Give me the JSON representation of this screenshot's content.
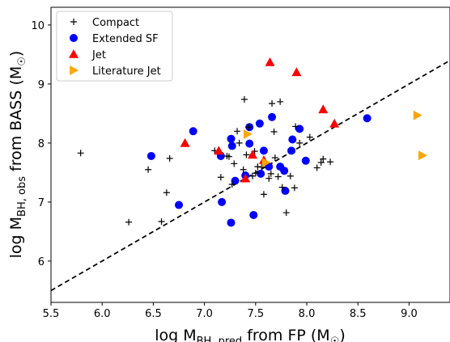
{
  "chart_data": {
    "type": "scatter",
    "xlabel": "log M_BH, pred from FP (M_⊙)",
    "ylabel": "log M_BH, obs from BASS (M_⊙)",
    "xlim": [
      5.5,
      9.4
    ],
    "ylim": [
      5.3,
      10.3
    ],
    "x_ticks": [
      5.5,
      6.0,
      6.5,
      7.0,
      7.5,
      8.0,
      8.5,
      9.0
    ],
    "y_ticks": [
      6,
      7,
      8,
      9,
      10
    ],
    "legend_position": "upper-left",
    "reference_line": {
      "style": "dashed",
      "color": "#000000",
      "points": [
        [
          5.5,
          5.5
        ],
        [
          9.4,
          9.4
        ]
      ]
    },
    "series": [
      {
        "name": "Compact",
        "marker": "plus",
        "color": "#000000",
        "points": [
          [
            5.79,
            7.83
          ],
          [
            6.26,
            6.66
          ],
          [
            6.45,
            7.55
          ],
          [
            6.58,
            6.67
          ],
          [
            6.63,
            7.16
          ],
          [
            6.66,
            7.74
          ],
          [
            7.1,
            7.87
          ],
          [
            7.15,
            7.84
          ],
          [
            7.16,
            7.42
          ],
          [
            7.22,
            7.78
          ],
          [
            7.24,
            7.77
          ],
          [
            7.27,
            7.3
          ],
          [
            7.29,
            7.65
          ],
          [
            7.32,
            8.2
          ],
          [
            7.34,
            8.0
          ],
          [
            7.38,
            7.55
          ],
          [
            7.39,
            8.74
          ],
          [
            7.41,
            7.8
          ],
          [
            7.43,
            8.27
          ],
          [
            7.47,
            7.44
          ],
          [
            7.49,
            7.86
          ],
          [
            7.5,
            7.49
          ],
          [
            7.52,
            7.6
          ],
          [
            7.56,
            7.59
          ],
          [
            7.58,
            7.13
          ],
          [
            7.63,
            7.4
          ],
          [
            7.65,
            7.48
          ],
          [
            7.66,
            8.67
          ],
          [
            7.68,
            8.19
          ],
          [
            7.69,
            7.75
          ],
          [
            7.72,
            7.43
          ],
          [
            7.74,
            8.7
          ],
          [
            7.76,
            7.25
          ],
          [
            7.8,
            6.82
          ],
          [
            7.84,
            7.44
          ],
          [
            7.88,
            7.24
          ],
          [
            7.89,
            8.28
          ],
          [
            7.93,
            8.0
          ],
          [
            8.03,
            8.1
          ],
          [
            8.1,
            7.58
          ],
          [
            8.14,
            7.67
          ],
          [
            8.16,
            7.73
          ],
          [
            8.23,
            7.68
          ]
        ]
      },
      {
        "name": "Extended SF",
        "marker": "circle",
        "color": "#0000ff",
        "points": [
          [
            6.48,
            7.78
          ],
          [
            6.75,
            6.95
          ],
          [
            6.89,
            8.2
          ],
          [
            7.16,
            7.78
          ],
          [
            7.17,
            7.0
          ],
          [
            7.26,
            8.07
          ],
          [
            7.26,
            6.65
          ],
          [
            7.27,
            7.95
          ],
          [
            7.3,
            7.36
          ],
          [
            7.4,
            7.45
          ],
          [
            7.44,
            8.27
          ],
          [
            7.44,
            7.99
          ],
          [
            7.48,
            6.78
          ],
          [
            7.54,
            8.33
          ],
          [
            7.55,
            7.48
          ],
          [
            7.58,
            7.87
          ],
          [
            7.63,
            7.6
          ],
          [
            7.66,
            8.44
          ],
          [
            7.74,
            7.6
          ],
          [
            7.78,
            7.53
          ],
          [
            7.79,
            7.19
          ],
          [
            7.85,
            7.87
          ],
          [
            7.86,
            8.06
          ],
          [
            7.93,
            8.24
          ],
          [
            7.99,
            7.7
          ],
          [
            8.59,
            8.42
          ]
        ]
      },
      {
        "name": "Jet",
        "marker": "triangle-up",
        "color": "#ff0000",
        "points": [
          [
            6.81,
            8.0
          ],
          [
            7.14,
            7.87
          ],
          [
            7.4,
            7.4
          ],
          [
            7.47,
            7.8
          ],
          [
            7.58,
            7.71
          ],
          [
            7.64,
            9.37
          ],
          [
            7.9,
            9.2
          ],
          [
            8.16,
            8.57
          ],
          [
            8.27,
            8.33
          ]
        ]
      },
      {
        "name": "Literature Jet",
        "marker": "triangle-right",
        "color": "#ffa500",
        "points": [
          [
            7.42,
            8.15
          ],
          [
            7.6,
            7.67
          ],
          [
            9.08,
            8.47
          ],
          [
            9.13,
            7.79
          ]
        ]
      }
    ]
  }
}
